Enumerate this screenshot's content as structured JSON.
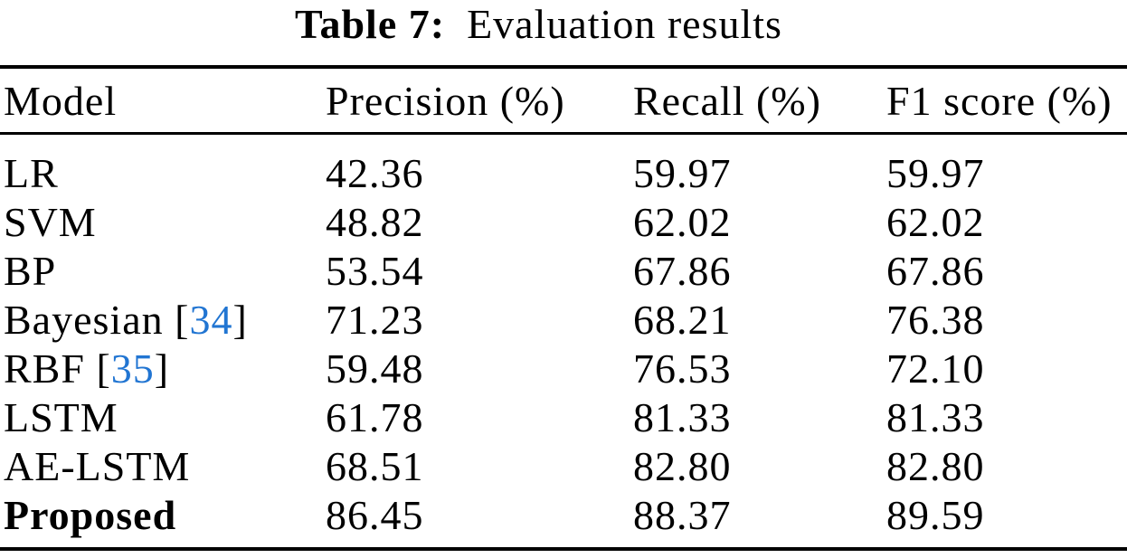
{
  "caption": {
    "label": "Table 7:",
    "text": "Evaluation results"
  },
  "citation": {
    "open_bracket": "[",
    "close_bracket": "]"
  },
  "colors": {
    "background": "#ffffff",
    "text": "#000000",
    "rule": "#000000",
    "citation_link": "#2175d2"
  },
  "table": {
    "columns": [
      "Model",
      "Precision (%)",
      "Recall (%)",
      "F1 score (%)"
    ],
    "rows": [
      {
        "model": "LR",
        "precision": "42.36",
        "recall": "59.97",
        "f1": "59.97"
      },
      {
        "model": "SVM",
        "precision": "48.82",
        "recall": "62.02",
        "f1": "62.02"
      },
      {
        "model": "BP",
        "precision": "53.54",
        "recall": "67.86",
        "f1": "67.86"
      },
      {
        "model": "Bayesian",
        "citation": "34",
        "precision": "71.23",
        "recall": "68.21",
        "f1": "76.38"
      },
      {
        "model": "RBF",
        "citation": "35",
        "precision": "59.48",
        "recall": "76.53",
        "f1": "72.10"
      },
      {
        "model": "LSTM",
        "precision": "61.78",
        "recall": "81.33",
        "f1": "81.33"
      },
      {
        "model": "AE-LSTM",
        "precision": "68.51",
        "recall": "82.80",
        "f1": "82.80"
      },
      {
        "model": "Proposed",
        "emphasis": "bold",
        "precision": "86.45",
        "recall": "88.37",
        "f1": "89.59"
      }
    ]
  },
  "chart_data": {
    "type": "table",
    "title": "Table 7: Evaluation results",
    "columns": [
      "Model",
      "Precision (%)",
      "Recall (%)",
      "F1 score (%)"
    ],
    "rows": [
      [
        "LR",
        42.36,
        59.97,
        59.97
      ],
      [
        "SVM",
        48.82,
        62.02,
        62.02
      ],
      [
        "BP",
        53.54,
        67.86,
        67.86
      ],
      [
        "Bayesian [34]",
        71.23,
        68.21,
        76.38
      ],
      [
        "RBF [35]",
        59.48,
        76.53,
        72.1
      ],
      [
        "LSTM",
        61.78,
        81.33,
        81.33
      ],
      [
        "AE-LSTM",
        68.51,
        82.8,
        82.8
      ],
      [
        "Proposed",
        86.45,
        88.37,
        89.59
      ]
    ]
  }
}
